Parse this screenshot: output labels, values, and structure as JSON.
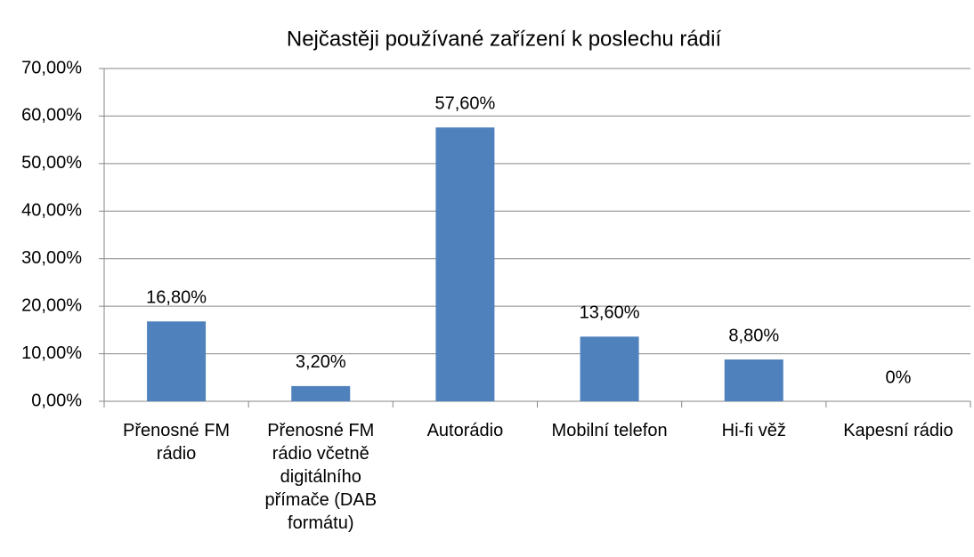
{
  "chart_data": {
    "type": "bar",
    "title": "Nejčastěji používané zařízení k poslechu rádií",
    "categories": [
      "Přenosné FM rádio",
      "Přenosné FM rádio včetně digitálního přímače (DAB formátu)",
      "Autorádio",
      "Mobilní telefon",
      "Hi-fi věž",
      "Kapesní rádio"
    ],
    "values": [
      16.8,
      3.2,
      57.6,
      13.6,
      8.8,
      0
    ],
    "value_labels": [
      "16,80%",
      "3,20%",
      "57,60%",
      "13,60%",
      "8,80%",
      "0%"
    ],
    "color": "#4f81bd",
    "ylim": [
      0,
      70
    ],
    "yticks": [
      {
        "value": 0,
        "label": "0,00%"
      },
      {
        "value": 10,
        "label": "10,00%"
      },
      {
        "value": 20,
        "label": "20,00%"
      },
      {
        "value": 30,
        "label": "30,00%"
      },
      {
        "value": 40,
        "label": "40,00%"
      },
      {
        "value": 50,
        "label": "50,00%"
      },
      {
        "value": 60,
        "label": "60,00%"
      },
      {
        "value": 70,
        "label": "70,00%"
      }
    ],
    "grid": true
  }
}
